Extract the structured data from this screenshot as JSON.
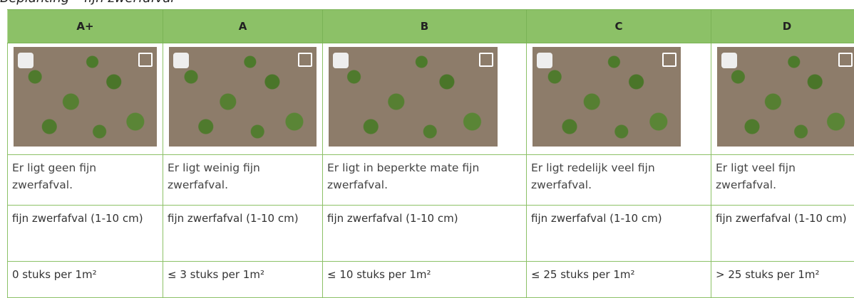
{
  "title": "Beplanting – fijn zwerfafval",
  "table": {
    "header": [
      "A+",
      "A",
      "B",
      "C",
      "D"
    ],
    "rows": [
      [
        "Er ligt geen fijn zwerfafval.",
        "Er ligt weinig fijn zwerfafval.",
        "Er ligt in beperkte mate fijn zwerfafval.",
        "Er ligt redelijk veel fijn zwerfafval.",
        "Er ligt veel fijn zwerfafval."
      ],
      [
        "fijn zwerfafval (1-10 cm)",
        "fijn zwerfafval (1-10 cm)",
        "fijn zwerfafval (1-10 cm)",
        "fijn zwerfafval (1-10 cm)",
        "fijn zwerfafval (1-10 cm)"
      ],
      [
        "0 stuks per 1m²",
        "≤ 3 stuks per 1m²",
        "≤ 10 stuks per 1m²",
        "≤ 25 stuks per 1m²",
        "> 25 stuks per 1m²"
      ]
    ]
  }
}
